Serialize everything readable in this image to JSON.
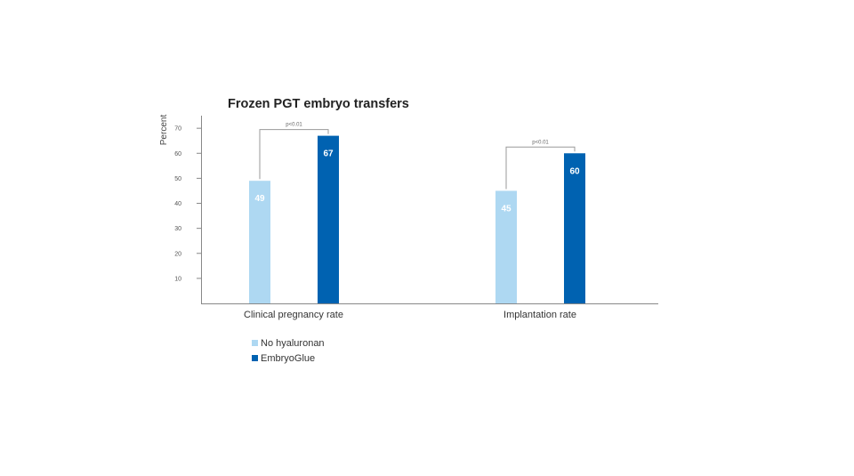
{
  "chart_data": {
    "type": "bar",
    "title": "Frozen PGT embryo transfers",
    "ylabel": "Percent",
    "xlabel": "",
    "ylim": [
      0,
      75
    ],
    "yticks": [
      10,
      20,
      30,
      40,
      50,
      60,
      70
    ],
    "categories": [
      "Clinical pregnancy rate",
      "Implantation rate"
    ],
    "series": [
      {
        "name": "No hyaluronan",
        "color": "#aed8f2",
        "values": [
          49,
          45
        ]
      },
      {
        "name": "EmbryoGlue",
        "color": "#0062b1",
        "values": [
          67,
          60
        ]
      }
    ],
    "annotations": [
      "p<0.01",
      "p<0.01"
    ],
    "legend_position": "bottom-left",
    "grid": false
  }
}
